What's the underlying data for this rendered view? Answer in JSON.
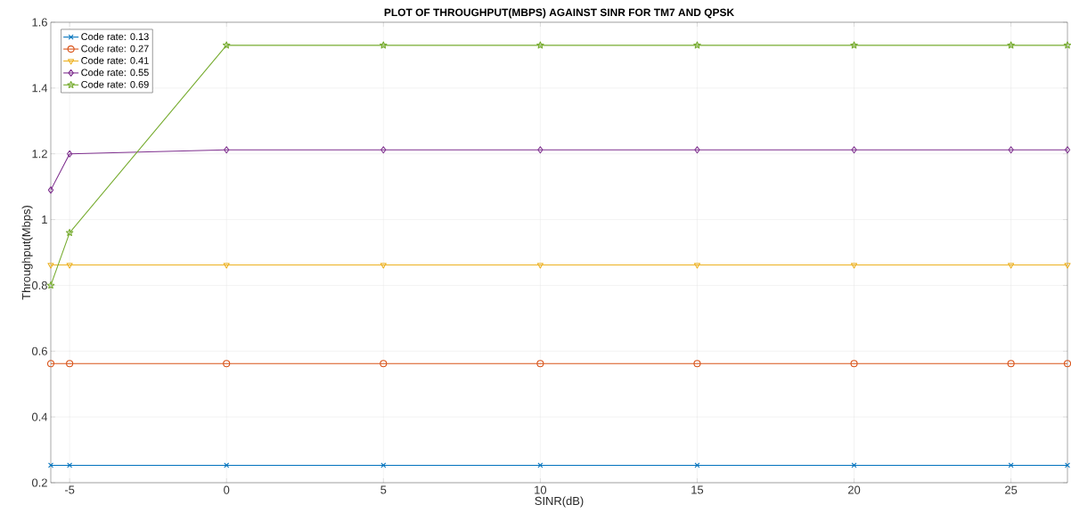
{
  "chart_data": {
    "type": "line",
    "title": "PLOT OF THROUGHPUT(MBPS) AGAINST SINR FOR TM7 AND QPSK",
    "xlabel": "SINR(dB)",
    "ylabel": "Throughput(Mbps)",
    "x": [
      -5.6,
      -5,
      0,
      5,
      10,
      15,
      20,
      25,
      26.8
    ],
    "series": [
      {
        "name": "Code rate: 0.13",
        "color": "#0072bd",
        "marker": "cross",
        "values": [
          0.253,
          0.253,
          0.253,
          0.253,
          0.253,
          0.253,
          0.253,
          0.253,
          0.253
        ]
      },
      {
        "name": "Code rate: 0.27",
        "color": "#d95319",
        "marker": "circle",
        "values": [
          0.562,
          0.562,
          0.562,
          0.562,
          0.562,
          0.562,
          0.562,
          0.562,
          0.562
        ]
      },
      {
        "name": "Code rate: 0.41",
        "color": "#edb120",
        "marker": "triangle",
        "values": [
          0.862,
          0.862,
          0.862,
          0.862,
          0.862,
          0.862,
          0.862,
          0.862,
          0.862
        ]
      },
      {
        "name": "Code rate: 0.55",
        "color": "#7e2f8e",
        "marker": "diamond",
        "values": [
          1.09,
          1.2,
          1.212,
          1.212,
          1.212,
          1.212,
          1.212,
          1.212,
          1.212
        ]
      },
      {
        "name": "Code rate: 0.69",
        "color": "#77ac30",
        "marker": "star",
        "values": [
          0.8,
          0.96,
          1.53,
          1.53,
          1.53,
          1.53,
          1.53,
          1.53,
          1.53
        ]
      }
    ],
    "xlim": [
      -5.6,
      26.8
    ],
    "ylim": [
      0.2,
      1.6
    ],
    "xticks": [
      -5,
      0,
      5,
      10,
      15,
      20,
      25
    ],
    "yticks": [
      0.2,
      0.4,
      0.6,
      0.8,
      1,
      1.2,
      1.4,
      1.6
    ],
    "grid": true,
    "legend": "top left",
    "line_style": "solid"
  }
}
